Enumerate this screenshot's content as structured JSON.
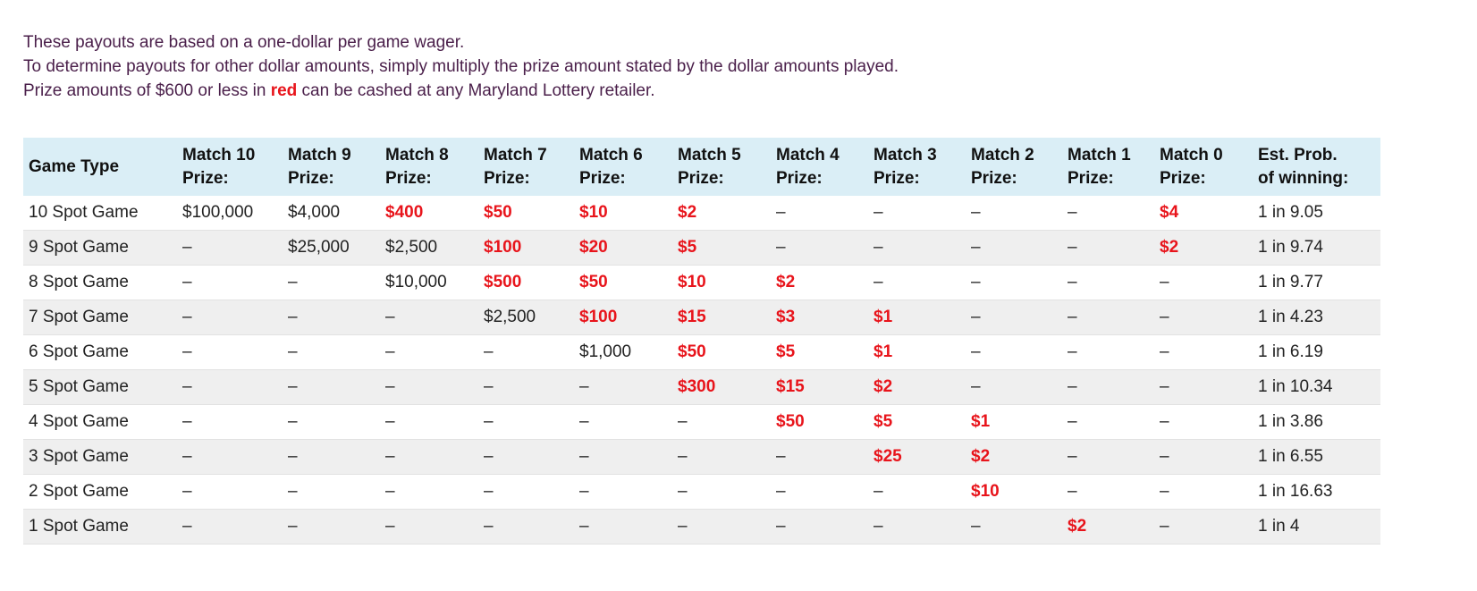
{
  "intro": {
    "line1": "These payouts are based on a one-dollar per game wager.",
    "line2": "To determine payouts for other dollar amounts, simply multiply the prize amount stated by the dollar amounts played.",
    "line3_before": "Prize amounts of $600 or less in ",
    "line3_red": "red",
    "line3_after": " can be cashed at any Maryland Lottery retailer."
  },
  "colors": {
    "red_prize": "#e8141b",
    "header_bg": "#daeef6",
    "intro_text": "#4a1f4a"
  },
  "table": {
    "headers": [
      [
        "Game Type"
      ],
      [
        "Match 10",
        "Prize:"
      ],
      [
        "Match 9",
        "Prize:"
      ],
      [
        "Match 8",
        "Prize:"
      ],
      [
        "Match 7",
        "Prize:"
      ],
      [
        "Match 6",
        "Prize:"
      ],
      [
        "Match 5",
        "Prize:"
      ],
      [
        "Match 4",
        "Prize:"
      ],
      [
        "Match 3",
        "Prize:"
      ],
      [
        "Match 2",
        "Prize:"
      ],
      [
        "Match 1",
        "Prize:"
      ],
      [
        "Match 0",
        "Prize:"
      ],
      [
        "Est. Prob.",
        "of winning:"
      ]
    ],
    "rows": [
      {
        "game": "10 Spot Game",
        "cells": [
          {
            "v": "$100,000",
            "red": false
          },
          {
            "v": "$4,000",
            "red": false
          },
          {
            "v": "$400",
            "red": true
          },
          {
            "v": "$50",
            "red": true
          },
          {
            "v": "$10",
            "red": true
          },
          {
            "v": "$2",
            "red": true
          },
          {
            "v": "–",
            "red": false
          },
          {
            "v": "–",
            "red": false
          },
          {
            "v": "–",
            "red": false
          },
          {
            "v": "–",
            "red": false
          },
          {
            "v": "$4",
            "red": true
          }
        ],
        "prob": "1 in 9.05"
      },
      {
        "game": "9 Spot Game",
        "cells": [
          {
            "v": "–",
            "red": false
          },
          {
            "v": "$25,000",
            "red": false
          },
          {
            "v": "$2,500",
            "red": false
          },
          {
            "v": "$100",
            "red": true
          },
          {
            "v": "$20",
            "red": true
          },
          {
            "v": "$5",
            "red": true
          },
          {
            "v": "–",
            "red": false
          },
          {
            "v": "–",
            "red": false
          },
          {
            "v": "–",
            "red": false
          },
          {
            "v": "–",
            "red": false
          },
          {
            "v": "$2",
            "red": true
          }
        ],
        "prob": "1 in 9.74"
      },
      {
        "game": "8 Spot Game",
        "cells": [
          {
            "v": "–",
            "red": false
          },
          {
            "v": "–",
            "red": false
          },
          {
            "v": "$10,000",
            "red": false
          },
          {
            "v": "$500",
            "red": true
          },
          {
            "v": "$50",
            "red": true
          },
          {
            "v": "$10",
            "red": true
          },
          {
            "v": "$2",
            "red": true
          },
          {
            "v": "–",
            "red": false
          },
          {
            "v": "–",
            "red": false
          },
          {
            "v": "–",
            "red": false
          },
          {
            "v": "–",
            "red": false
          }
        ],
        "prob": "1 in 9.77"
      },
      {
        "game": "7 Spot Game",
        "cells": [
          {
            "v": "–",
            "red": false
          },
          {
            "v": "–",
            "red": false
          },
          {
            "v": "–",
            "red": false
          },
          {
            "v": "$2,500",
            "red": false
          },
          {
            "v": "$100",
            "red": true
          },
          {
            "v": "$15",
            "red": true
          },
          {
            "v": "$3",
            "red": true
          },
          {
            "v": "$1",
            "red": true
          },
          {
            "v": "–",
            "red": false
          },
          {
            "v": "–",
            "red": false
          },
          {
            "v": "–",
            "red": false
          }
        ],
        "prob": "1 in 4.23"
      },
      {
        "game": "6 Spot Game",
        "cells": [
          {
            "v": "–",
            "red": false
          },
          {
            "v": "–",
            "red": false
          },
          {
            "v": "–",
            "red": false
          },
          {
            "v": "–",
            "red": false
          },
          {
            "v": "$1,000",
            "red": false
          },
          {
            "v": "$50",
            "red": true
          },
          {
            "v": "$5",
            "red": true
          },
          {
            "v": "$1",
            "red": true
          },
          {
            "v": "–",
            "red": false
          },
          {
            "v": "–",
            "red": false
          },
          {
            "v": "–",
            "red": false
          }
        ],
        "prob": "1 in 6.19"
      },
      {
        "game": "5 Spot Game",
        "cells": [
          {
            "v": "–",
            "red": false
          },
          {
            "v": "–",
            "red": false
          },
          {
            "v": "–",
            "red": false
          },
          {
            "v": "–",
            "red": false
          },
          {
            "v": "–",
            "red": false
          },
          {
            "v": "$300",
            "red": true
          },
          {
            "v": "$15",
            "red": true
          },
          {
            "v": "$2",
            "red": true
          },
          {
            "v": "–",
            "red": false
          },
          {
            "v": "–",
            "red": false
          },
          {
            "v": "–",
            "red": false
          }
        ],
        "prob": "1 in 10.34"
      },
      {
        "game": "4 Spot Game",
        "cells": [
          {
            "v": "–",
            "red": false
          },
          {
            "v": "–",
            "red": false
          },
          {
            "v": "–",
            "red": false
          },
          {
            "v": "–",
            "red": false
          },
          {
            "v": "–",
            "red": false
          },
          {
            "v": "–",
            "red": false
          },
          {
            "v": "$50",
            "red": true
          },
          {
            "v": "$5",
            "red": true
          },
          {
            "v": "$1",
            "red": true
          },
          {
            "v": "–",
            "red": false
          },
          {
            "v": "–",
            "red": false
          }
        ],
        "prob": "1 in 3.86"
      },
      {
        "game": "3 Spot Game",
        "cells": [
          {
            "v": "–",
            "red": false
          },
          {
            "v": "–",
            "red": false
          },
          {
            "v": "–",
            "red": false
          },
          {
            "v": "–",
            "red": false
          },
          {
            "v": "–",
            "red": false
          },
          {
            "v": "–",
            "red": false
          },
          {
            "v": "–",
            "red": false
          },
          {
            "v": "$25",
            "red": true
          },
          {
            "v": "$2",
            "red": true
          },
          {
            "v": "–",
            "red": false
          },
          {
            "v": "–",
            "red": false
          }
        ],
        "prob": "1 in 6.55"
      },
      {
        "game": "2 Spot Game",
        "cells": [
          {
            "v": "–",
            "red": false
          },
          {
            "v": "–",
            "red": false
          },
          {
            "v": "–",
            "red": false
          },
          {
            "v": "–",
            "red": false
          },
          {
            "v": "–",
            "red": false
          },
          {
            "v": "–",
            "red": false
          },
          {
            "v": "–",
            "red": false
          },
          {
            "v": "–",
            "red": false
          },
          {
            "v": "$10",
            "red": true
          },
          {
            "v": "–",
            "red": false
          },
          {
            "v": "–",
            "red": false
          }
        ],
        "prob": "1 in 16.63"
      },
      {
        "game": "1 Spot Game",
        "cells": [
          {
            "v": "–",
            "red": false
          },
          {
            "v": "–",
            "red": false
          },
          {
            "v": "–",
            "red": false
          },
          {
            "v": "–",
            "red": false
          },
          {
            "v": "–",
            "red": false
          },
          {
            "v": "–",
            "red": false
          },
          {
            "v": "–",
            "red": false
          },
          {
            "v": "–",
            "red": false
          },
          {
            "v": "–",
            "red": false
          },
          {
            "v": "$2",
            "red": true
          },
          {
            "v": "–",
            "red": false
          }
        ],
        "prob": "1 in 4"
      }
    ]
  }
}
